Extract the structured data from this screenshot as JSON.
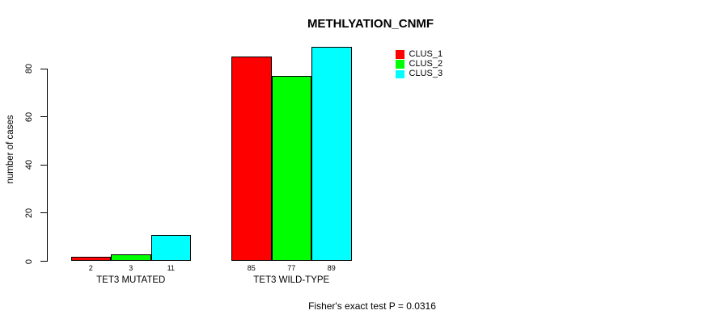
{
  "chart_data": {
    "type": "bar",
    "title": "METHLYATION_CNMF",
    "categories": [
      "TET3 MUTATED",
      "TET3 WILD-TYPE"
    ],
    "series": [
      {
        "name": "CLUS_1",
        "color": "#ff0000",
        "values": [
          2,
          85
        ]
      },
      {
        "name": "CLUS_2",
        "color": "#00ff00",
        "values": [
          3,
          77
        ]
      },
      {
        "name": "CLUS_3",
        "color": "#00ffff",
        "values": [
          11,
          89
        ]
      }
    ],
    "xlabel": "",
    "ylabel": "number of cases",
    "yticks": [
      0,
      20,
      40,
      60,
      80
    ],
    "ylim": [
      0,
      89
    ],
    "bar_value_labels": [
      [
        2,
        3,
        11
      ],
      [
        85,
        77,
        89
      ]
    ],
    "grid": false,
    "legend_position": "top-right",
    "annotation": "Fisher's exact test P = 0.0316"
  }
}
